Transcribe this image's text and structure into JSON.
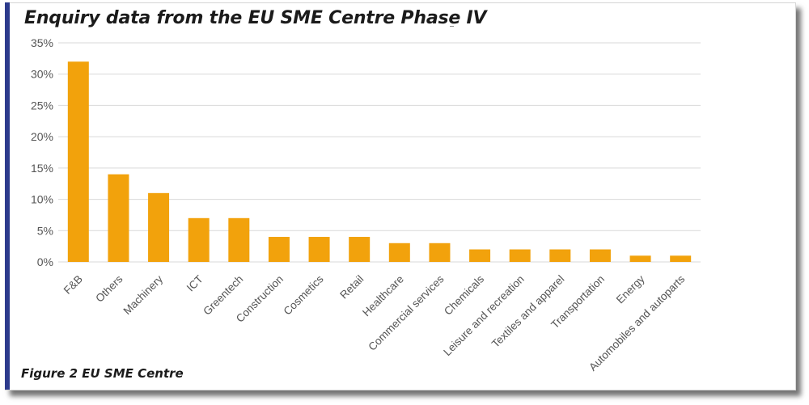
{
  "title": "Enquiry data from the EU SME Centre Phase IV",
  "caption": "Figure 2 EU SME Centre",
  "colors": {
    "bar": "#F2A20C",
    "grid": "#d9d9d9",
    "accent": "#2c3a8c"
  },
  "chart_data": {
    "type": "bar",
    "title": "",
    "xlabel": "",
    "ylabel": "",
    "ylim": [
      0,
      35
    ],
    "y_ticks": [
      "0%",
      "5%",
      "10%",
      "15%",
      "20%",
      "25%",
      "30%",
      "35%"
    ],
    "grid": true,
    "categories": [
      "F&B",
      "Others",
      "Machinery",
      "ICT",
      "Greentech",
      "Construction",
      "Cosmetics",
      "Retail",
      "Healthcare",
      "Commercial services",
      "Chemicals",
      "Leisure and recreation",
      "Textiles and apparel",
      "Transportation",
      "Energy",
      "Automobiles and autoparts"
    ],
    "values": [
      32,
      14,
      11,
      7,
      7,
      4,
      4,
      4,
      3,
      3,
      2,
      2,
      2,
      2,
      1,
      1
    ]
  }
}
